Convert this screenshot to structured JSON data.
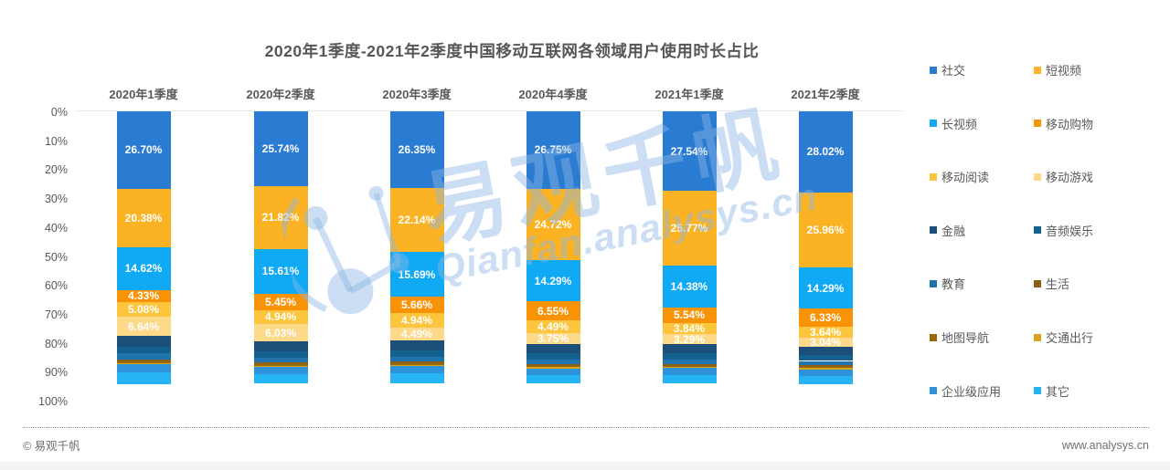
{
  "title": "2020年1季度-2021年2季度中国移动互联网各领域用户使用时长占比",
  "axis": {
    "ticks": [
      "0%",
      "10%",
      "20%",
      "30%",
      "40%",
      "50%",
      "60%",
      "70%",
      "80%",
      "90%",
      "100%"
    ]
  },
  "chart_data": {
    "type": "bar",
    "subtype": "stacked-percent-inverted-axis",
    "categories": [
      "2020年1季度",
      "2020年2季度",
      "2020年3季度",
      "2020年4季度",
      "2021年1季度",
      "2021年2季度"
    ],
    "unit": "%",
    "ylim": [
      0,
      100
    ],
    "legend_position": "right",
    "grid": "top-line-only",
    "series": [
      {
        "name": "社交",
        "color": "#2a7bd2",
        "labeled": true,
        "values": [
          26.7,
          25.74,
          26.35,
          26.75,
          27.54,
          28.02
        ]
      },
      {
        "name": "短视频",
        "color": "#fbb324",
        "labeled": true,
        "values": [
          20.38,
          21.82,
          22.14,
          24.72,
          25.77,
          25.96
        ]
      },
      {
        "name": "长视频",
        "color": "#0fa9f4",
        "labeled": true,
        "values": [
          14.62,
          15.61,
          15.69,
          14.29,
          14.38,
          14.29
        ]
      },
      {
        "name": "移动购物",
        "color": "#f89307",
        "labeled": true,
        "values": [
          4.33,
          5.45,
          5.66,
          6.55,
          5.54,
          6.33
        ]
      },
      {
        "name": "移动阅读",
        "color": "#fcc53d",
        "labeled": true,
        "values": [
          5.08,
          4.94,
          4.94,
          4.49,
          3.84,
          3.64
        ]
      },
      {
        "name": "移动游戏",
        "color": "#fdd98a",
        "labeled": true,
        "values": [
          6.64,
          6.03,
          4.49,
          3.75,
          3.29,
          3.04
        ]
      },
      {
        "name": "金融",
        "color": "#1b4e79",
        "labeled": false,
        "values": [
          3.6,
          3.4,
          3.4,
          3.2,
          3.2,
          3.0
        ]
      },
      {
        "name": "音频娱乐",
        "color": "#14608f",
        "labeled": false,
        "values": [
          2.4,
          2.2,
          2.2,
          2.1,
          2.1,
          2.0
        ]
      },
      {
        "name": "教育",
        "color": "#1f74ae",
        "labeled": false,
        "values": [
          1.9,
          1.7,
          1.7,
          1.6,
          1.6,
          1.5
        ]
      },
      {
        "name": "生活",
        "color": "#8a6116",
        "labeled": false,
        "values": [
          0.7,
          0.6,
          0.6,
          0.5,
          0.6,
          0.5
        ]
      },
      {
        "name": "地图导航",
        "color": "#97690b",
        "labeled": false,
        "values": [
          0.6,
          0.5,
          0.5,
          0.5,
          0.5,
          0.5
        ]
      },
      {
        "name": "交通出行",
        "color": "#d9a514",
        "labeled": false,
        "values": [
          0.4,
          0.4,
          0.4,
          0.4,
          0.4,
          0.4
        ]
      },
      {
        "name": "企业级应用",
        "color": "#2f93db",
        "labeled": false,
        "values": [
          3.0,
          2.5,
          2.6,
          2.3,
          2.4,
          2.2
        ]
      },
      {
        "name": "其它",
        "color": "#27b4f5",
        "labeled": false,
        "values": [
          4.0,
          3.2,
          3.4,
          3.0,
          3.0,
          2.9
        ]
      }
    ]
  },
  "legend": {
    "items": [
      {
        "label": "社交",
        "color": "#2a7bd2"
      },
      {
        "label": "短视频",
        "color": "#fbb324"
      },
      {
        "label": "长视频",
        "color": "#0fa9f4"
      },
      {
        "label": "移动购物",
        "color": "#f89307"
      },
      {
        "label": "移动阅读",
        "color": "#fcc53d"
      },
      {
        "label": "移动游戏",
        "color": "#fdd98a"
      },
      {
        "label": "金融",
        "color": "#1b4e79"
      },
      {
        "label": "音频娱乐",
        "color": "#14608f"
      },
      {
        "label": "教育",
        "color": "#1f74ae"
      },
      {
        "label": "生活",
        "color": "#8a6116"
      },
      {
        "label": "地图导航",
        "color": "#97690b"
      },
      {
        "label": "交通出行",
        "color": "#d9a514"
      },
      {
        "label": "企业级应用",
        "color": "#2f93db"
      },
      {
        "label": "其它",
        "color": "#27b4f5"
      }
    ]
  },
  "watermark": {
    "line1": "易观千帆",
    "line2": "Qianfan.analysys.cn"
  },
  "footer": {
    "left": "© 易观千帆",
    "right": "www.analysys.cn"
  }
}
